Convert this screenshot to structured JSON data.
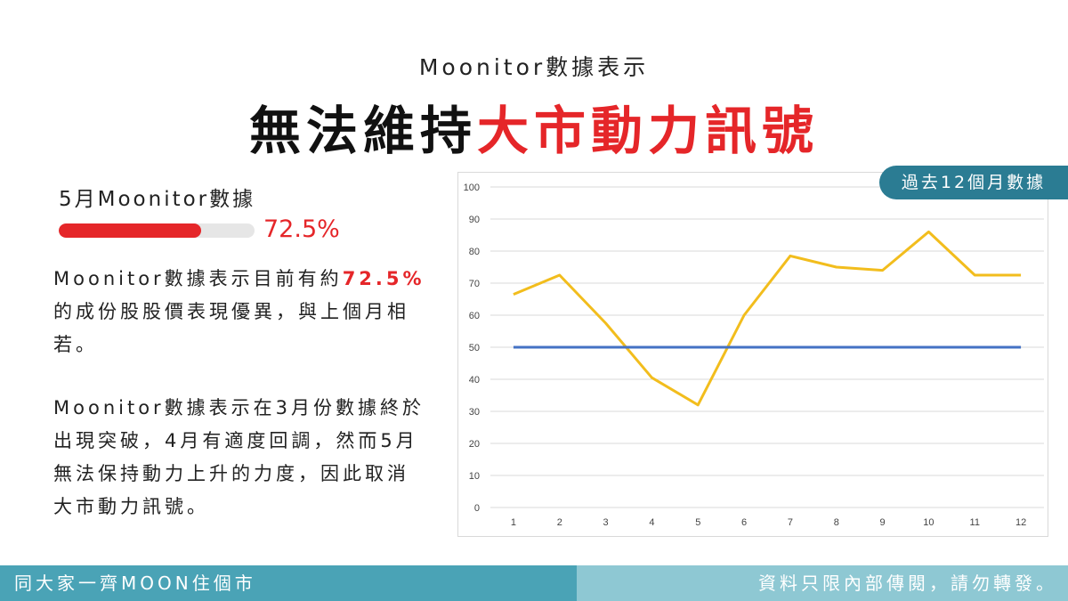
{
  "header": {
    "subtitle": "Moonitor數據表示",
    "headline_dark": "無法維持",
    "headline_red": "大市動力訊號"
  },
  "metric": {
    "label": "5月Moonitor數據",
    "value": "72.5%",
    "fraction": 0.725
  },
  "text": {
    "p1_a": "Moonitor數據表示目前有約",
    "p1_hl": "72.5%",
    "p1_b": "的成份股股價表現優異，與上個月相若。",
    "p2": "Moonitor數據表示在3月份數據終於出現突破，4月有適度回調，然而5月無法保持動力上升的力度，因此取消大市動力訊號。"
  },
  "badge": "過去12個月數據",
  "footer": {
    "left": "同大家一齊MOON住個市",
    "right": "資料只限內部傳閱，請勿轉發。"
  },
  "colors": {
    "accent_red": "#e52629",
    "series_yellow": "#f2bd1d",
    "series_blue": "#4472c4",
    "teal": "#2b7c93"
  },
  "chart_data": {
    "type": "line",
    "x": [
      1,
      2,
      3,
      4,
      5,
      6,
      7,
      8,
      9,
      10,
      11,
      12
    ],
    "series": [
      {
        "values": [
          66.5,
          72.5,
          57.5,
          40.5,
          32,
          60,
          78.5,
          75,
          74,
          86,
          72.5,
          72.5
        ]
      },
      {
        "values": [
          50,
          50,
          50,
          50,
          50,
          50,
          50,
          50,
          50,
          50,
          50,
          50
        ]
      }
    ],
    "yticks": [
      0,
      10,
      20,
      30,
      40,
      50,
      60,
      70,
      80,
      90,
      100
    ],
    "ylim": [
      0,
      100
    ],
    "grid": true
  }
}
